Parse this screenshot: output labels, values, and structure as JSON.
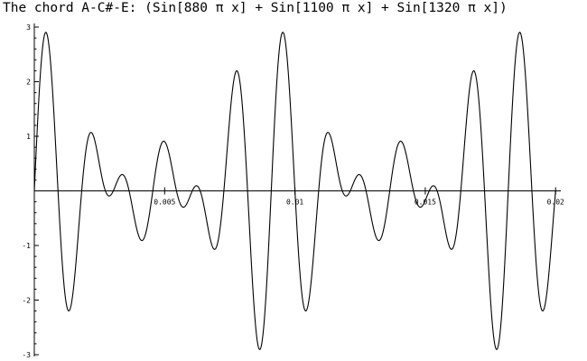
{
  "chart_data": {
    "type": "line",
    "title": "The chord A-C#-E:  (Sin[880 π x] + Sin[1100 π x] + Sin[1320 π x])",
    "xlabel": "",
    "ylabel": "",
    "xlim": [
      0,
      0.0202
    ],
    "ylim": [
      -3,
      3
    ],
    "grid": false,
    "legend": "none",
    "line_color": "#000000",
    "x_ticks": [
      {
        "value": 0.005,
        "label": "0.005"
      },
      {
        "value": 0.01,
        "label": "0.01"
      },
      {
        "value": 0.015,
        "label": "0.015"
      },
      {
        "value": 0.02,
        "label": "0.02"
      }
    ],
    "y_ticks": [
      {
        "value": -3,
        "label": "-3"
      },
      {
        "value": -2,
        "label": "-2"
      },
      {
        "value": -1,
        "label": "-1"
      },
      {
        "value": 1,
        "label": "1"
      },
      {
        "value": 2,
        "label": "2"
      },
      {
        "value": 3,
        "label": "3"
      }
    ],
    "series": [
      {
        "function_terms": [
          {
            "amplitude": 1,
            "angular_coefficient": 880
          },
          {
            "amplitude": 1,
            "angular_coefficient": 1100
          },
          {
            "amplitude": 1,
            "angular_coefficient": 1320
          }
        ],
        "x_range": [
          0,
          0.02
        ]
      }
    ]
  }
}
